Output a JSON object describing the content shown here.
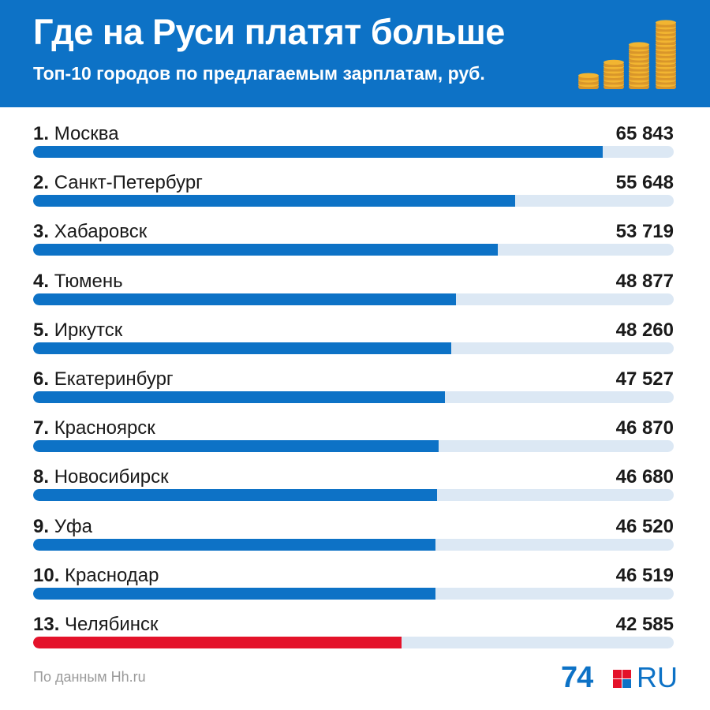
{
  "header": {
    "title": "Где на Руси платят больше",
    "subtitle": "Топ-10 городов по предлагаемым зарплатам, руб."
  },
  "colors": {
    "header_bg": "#0d72c6",
    "bar": "#0d72c6",
    "highlight_bar": "#e4122a",
    "track": "#dce8f4",
    "coin": "#f2b531"
  },
  "icons": {
    "decoration": "coin-stacks-icon"
  },
  "chart_data": {
    "type": "bar",
    "orientation": "horizontal",
    "title": "Где на Руси платят больше",
    "subtitle": "Топ-10 городов по предлагаемым зарплатам, руб.",
    "xlim": [
      0,
      74000
    ],
    "rows": [
      {
        "rank": "1.",
        "city": "Москва",
        "value": 65843,
        "value_label": "65 843",
        "highlight": false
      },
      {
        "rank": "2.",
        "city": "Санкт-Петербург",
        "value": 55648,
        "value_label": "55 648",
        "highlight": false
      },
      {
        "rank": "3.",
        "city": "Хабаровск",
        "value": 53719,
        "value_label": "53 719",
        "highlight": false
      },
      {
        "rank": "4.",
        "city": "Тюмень",
        "value": 48877,
        "value_label": "48 877",
        "highlight": false
      },
      {
        "rank": "5.",
        "city": "Иркутск",
        "value": 48260,
        "value_label": "48 260",
        "highlight": false
      },
      {
        "rank": "6.",
        "city": "Екатеринбург",
        "value": 47527,
        "value_label": "47 527",
        "highlight": false
      },
      {
        "rank": "7.",
        "city": "Красноярск",
        "value": 46870,
        "value_label": "46 870",
        "highlight": false
      },
      {
        "rank": "8.",
        "city": "Новосибирск",
        "value": 46680,
        "value_label": "46 680",
        "highlight": false
      },
      {
        "rank": "9.",
        "city": "Уфа",
        "value": 46520,
        "value_label": "46 520",
        "highlight": false
      },
      {
        "rank": "10.",
        "city": "Краснодар",
        "value": 46519,
        "value_label": "46 519",
        "highlight": false
      },
      {
        "rank": "13.",
        "city": "Челябинск",
        "value": 42585,
        "value_label": "42 585",
        "highlight": true
      }
    ]
  },
  "footer": {
    "source": "По данным Hh.ru",
    "logo_number": "74",
    "logo_text": "RU"
  }
}
